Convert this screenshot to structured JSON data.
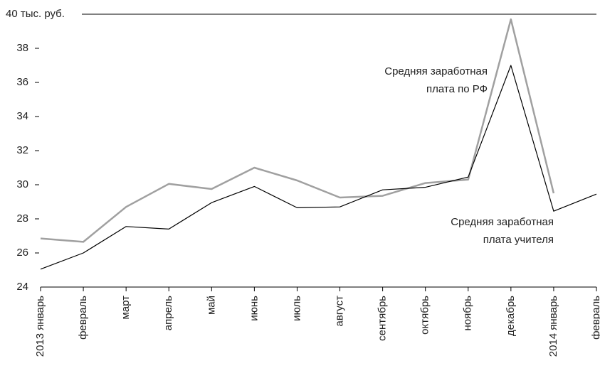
{
  "chart_data": {
    "type": "line",
    "categories": [
      "2013 январь",
      "февраль",
      "март",
      "апрель",
      "май",
      "июнь",
      "июль",
      "август",
      "сентябрь",
      "октябрь",
      "ноябрь",
      "декабрь",
      "2014 январь",
      "февраль"
    ],
    "series": [
      {
        "color": "#a0a0a0",
        "width": 2.5,
        "values": [
          26.85,
          26.65,
          28.7,
          30.05,
          29.75,
          31.0,
          30.25,
          29.25,
          29.35,
          30.1,
          30.3,
          39.7,
          29.5,
          null
        ]
      },
      {
        "color": "#000000",
        "width": 1.2,
        "values": [
          25.05,
          26.0,
          27.55,
          27.4,
          28.95,
          29.9,
          28.65,
          28.7,
          29.7,
          29.85,
          30.45,
          37.0,
          28.45,
          29.45
        ]
      }
    ],
    "annotations": [
      {
        "lines": [
          "Средняя заработная",
          "плата по РФ"
        ]
      },
      {
        "lines": [
          "Средняя заработная",
          "плата учителя"
        ]
      }
    ],
    "ylim": [
      24,
      40
    ],
    "yticks": [
      24,
      26,
      28,
      30,
      32,
      34,
      36,
      38,
      {
        "value": 40,
        "label": "40 тыс. руб."
      }
    ]
  }
}
